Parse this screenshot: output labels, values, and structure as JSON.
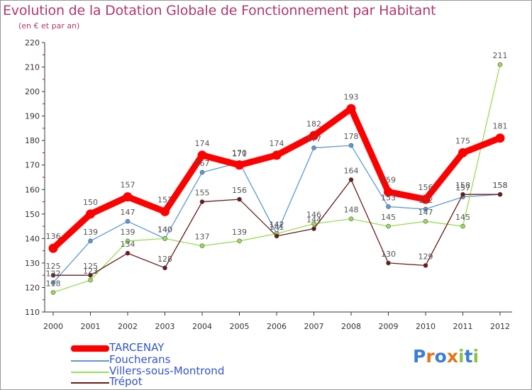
{
  "header": {
    "title": "Evolution de la Dotation Globale de Fonctionnement par Habitant",
    "subtitle": "(en € et par an)"
  },
  "chart_data": {
    "type": "line",
    "title": "Evolution de la Dotation Globale de Fonctionnement par Habitant",
    "subtitle": "(en € et par an)",
    "xlabel": "",
    "ylabel": "",
    "ylim": [
      110,
      220
    ],
    "yticks": [
      110,
      120,
      130,
      140,
      150,
      160,
      170,
      180,
      190,
      200,
      210,
      220
    ],
    "grid": false,
    "legend_position": "bottom-left",
    "x": [
      "2000",
      "2001",
      "2002",
      "2003",
      "2004",
      "2005",
      "2006",
      "2007",
      "2008",
      "2009",
      "2010",
      "2011",
      "2012"
    ],
    "series": [
      {
        "name": "TARCENAY",
        "color": "#ff0000",
        "style": "thick",
        "values": [
          136,
          150,
          157,
          151,
          174,
          170,
          174,
          182,
          193,
          159,
          156,
          175,
          181
        ],
        "labels": [
          "136",
          "150",
          "157",
          "151",
          "174",
          "170",
          "174",
          "182",
          "193",
          "159",
          "156",
          "175",
          "181"
        ]
      },
      {
        "name": "Foucherans",
        "color": "#5b9bd5",
        "style": "thin",
        "values": [
          122,
          139,
          147,
          140,
          167,
          171,
          142,
          177,
          178,
          153,
          152,
          157,
          158
        ],
        "labels": [
          "122",
          "139",
          "147",
          "140",
          "167",
          "171",
          "142",
          "177",
          "178",
          "153",
          "152",
          "157",
          "158"
        ]
      },
      {
        "name": "Villers-sous-Montrond",
        "color": "#99dd55",
        "style": "thin",
        "values": [
          118,
          123,
          139,
          140,
          137,
          139,
          142,
          146,
          148,
          145,
          147,
          145,
          211
        ],
        "labels": [
          "118",
          "123",
          "139",
          "140",
          "137",
          "139",
          "142",
          "146",
          "148",
          "145",
          "147",
          "145",
          "211"
        ]
      },
      {
        "name": "Trépot",
        "color": "#6b1a1a",
        "style": "thin",
        "values": [
          125,
          125,
          134,
          128,
          155,
          156,
          141,
          144,
          164,
          130,
          129,
          158,
          158
        ],
        "labels": [
          "125",
          "125",
          "134",
          "128",
          "155",
          "156",
          "141",
          "144",
          "164",
          "130",
          "129",
          "158",
          "158"
        ]
      }
    ]
  },
  "logo": {
    "text": "Proxiti",
    "letters": [
      "P",
      "r",
      "o",
      "x",
      "i",
      "t",
      "i"
    ],
    "colors": [
      "#3a7fd5",
      "#e8731a",
      "#3a7fd5",
      "#e8731a",
      "#8bc34a",
      "#3a7fd5",
      "#8bc34a"
    ]
  }
}
